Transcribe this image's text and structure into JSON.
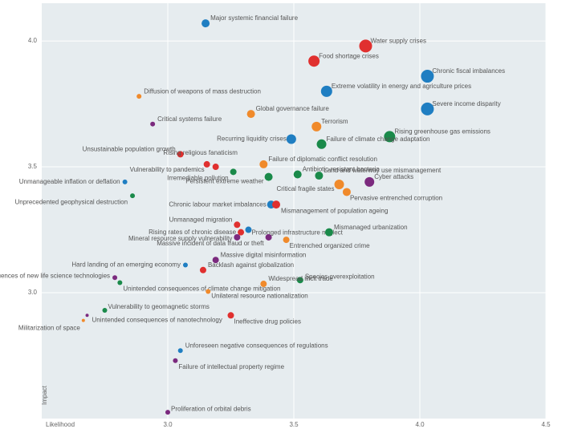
{
  "chart_data": {
    "type": "scatter",
    "x_label": "Likelihood",
    "y_label": "Impact",
    "xlim": [
      2.5,
      4.5
    ],
    "ylim": [
      2.5,
      4.15
    ],
    "xticks": [
      {
        "value": 3,
        "label": "3.0"
      },
      {
        "value": 3.5,
        "label": "3.5"
      },
      {
        "value": 4,
        "label": "4.0"
      },
      {
        "value": 4.5,
        "label": "4.5"
      }
    ],
    "yticks": [
      {
        "value": 3,
        "label": "3.0"
      },
      {
        "value": 3.5,
        "label": "3.5"
      },
      {
        "value": 4,
        "label": "4.0"
      }
    ],
    "grid": true,
    "points": [
      {
        "label": "Major systemic financial failure",
        "x": 3.15,
        "y": 4.07,
        "size": 5,
        "color": "#1f7ec2"
      },
      {
        "label": "Water supply crises",
        "x": 3.785,
        "y": 3.98,
        "size": 8,
        "color": "#e0302f"
      },
      {
        "label": "Food shortage crises",
        "x": 3.58,
        "y": 3.92,
        "size": 7,
        "color": "#e0302f"
      },
      {
        "label": "Chronic fiscal imbalances",
        "x": 4.03,
        "y": 3.86,
        "size": 8,
        "color": "#1f7ec2"
      },
      {
        "label": "Extreme volatility in energy and agriculture prices",
        "x": 3.63,
        "y": 3.8,
        "size": 7,
        "color": "#1f7ec2"
      },
      {
        "label": "Diffusion of weapons of mass destruction",
        "x": 2.886,
        "y": 3.78,
        "size": 3,
        "color": "#f08a2b"
      },
      {
        "label": "Severe income disparity",
        "x": 4.03,
        "y": 3.73,
        "size": 8,
        "color": "#1f7ec2"
      },
      {
        "label": "Global governance failure",
        "x": 3.33,
        "y": 3.71,
        "size": 5,
        "color": "#f08a2b"
      },
      {
        "label": "Critical systems failure",
        "x": 2.94,
        "y": 3.67,
        "size": 3,
        "color": "#7b2a7e"
      },
      {
        "label": "Terrorism",
        "x": 3.59,
        "y": 3.66,
        "size": 6,
        "color": "#f08a2b"
      },
      {
        "label": "Rising greenhouse gas emissions",
        "x": 3.88,
        "y": 3.62,
        "size": 7,
        "color": "#1a8a4a"
      },
      {
        "label": "Recurring liquidity crises",
        "x": 3.49,
        "y": 3.61,
        "size": 6,
        "color": "#1f7ec2"
      },
      {
        "label": "Failure of climate change adaptation",
        "x": 3.61,
        "y": 3.59,
        "size": 6,
        "color": "#1a8a4a"
      },
      {
        "label": "Unsustainable population growth",
        "x": 3.05,
        "y": 3.55,
        "size": 4,
        "color": "#e0302f"
      },
      {
        "label": "Rising religious fanaticism",
        "x": 3.155,
        "y": 3.51,
        "size": 4,
        "color": "#e0302f"
      },
      {
        "label": "Failure of diplomatic conflict resolution",
        "x": 3.38,
        "y": 3.51,
        "size": 5,
        "color": "#f08a2b"
      },
      {
        "label": "Antibiotic-resistant bacteria",
        "x": 3.515,
        "y": 3.47,
        "size": 5,
        "color": "#1a8a4a"
      },
      {
        "label": "Vulnerability to pandemics",
        "x": 3.19,
        "y": 3.5,
        "size": 4,
        "color": "#e0302f"
      },
      {
        "label": "Irremediable pollution",
        "x": 3.26,
        "y": 3.48,
        "size": 4,
        "color": "#1a8a4a"
      },
      {
        "label": "Land and waterway use mismanagement",
        "x": 3.6,
        "y": 3.465,
        "size": 5,
        "color": "#1a8a4a"
      },
      {
        "label": "Persistent extreme weather",
        "x": 3.4,
        "y": 3.46,
        "size": 5,
        "color": "#1a8a4a"
      },
      {
        "label": "Unmanageable inflation or deflation",
        "x": 2.83,
        "y": 3.44,
        "size": 3,
        "color": "#1f7ec2"
      },
      {
        "label": "Cyber attacks",
        "x": 3.8,
        "y": 3.44,
        "size": 6,
        "color": "#7b2a7e"
      },
      {
        "label": "Critical fragile states",
        "x": 3.68,
        "y": 3.43,
        "size": 6,
        "color": "#f08a2b"
      },
      {
        "label": "Pervasive entrenched corruption",
        "x": 3.71,
        "y": 3.4,
        "size": 5,
        "color": "#f08a2b"
      },
      {
        "label": "Unprecedented geophysical destruction",
        "x": 2.86,
        "y": 3.385,
        "size": 3,
        "color": "#1a8a4a"
      },
      {
        "label": "Chronic labour market imbalances",
        "x": 3.41,
        "y": 3.35,
        "size": 5,
        "color": "#1f7ec2"
      },
      {
        "label": "Mismanagement of population ageing",
        "x": 3.43,
        "y": 3.35,
        "size": 5,
        "color": "#e0302f"
      },
      {
        "label": "Unmanaged migration",
        "x": 3.275,
        "y": 3.27,
        "size": 4,
        "color": "#e0302f"
      },
      {
        "label": "Rising rates of chronic disease",
        "x": 3.29,
        "y": 3.24,
        "size": 4,
        "color": "#e0302f"
      },
      {
        "label": "Prolonged infrastructure neglect",
        "x": 3.32,
        "y": 3.25,
        "size": 4,
        "color": "#1f7ec2"
      },
      {
        "label": "Mineral resource supply vulnerability",
        "x": 3.275,
        "y": 3.22,
        "size": 4,
        "color": "#7b2a7e"
      },
      {
        "label": "Massive incident of data fraud or theft",
        "x": 3.4,
        "y": 3.22,
        "size": 4,
        "color": "#7b2a7e"
      },
      {
        "label": "Entrenched organized crime",
        "x": 3.47,
        "y": 3.21,
        "size": 4,
        "color": "#f08a2b"
      },
      {
        "label": "Mismanaged urbanization",
        "x": 3.64,
        "y": 3.24,
        "size": 5,
        "color": "#1a8a4a"
      },
      {
        "label": "Massive digital misinformation",
        "x": 3.19,
        "y": 3.13,
        "size": 4,
        "color": "#7b2a7e"
      },
      {
        "label": "Hard landing of an emerging economy",
        "x": 3.07,
        "y": 3.11,
        "size": 3,
        "color": "#1f7ec2"
      },
      {
        "label": "Backlash against globalization",
        "x": 3.14,
        "y": 3.09,
        "size": 4,
        "color": "#e0302f"
      },
      {
        "label": "Species overexploitation",
        "x": 3.525,
        "y": 3.05,
        "size": 4,
        "color": "#1a8a4a"
      },
      {
        "label": "Unintended consequences of new life science technologies",
        "x": 2.79,
        "y": 3.06,
        "size": 3,
        "color": "#7b2a7e"
      },
      {
        "label": "Unintended consequences of climate change mitigation",
        "x": 2.81,
        "y": 3.04,
        "size": 3,
        "color": "#1a8a4a"
      },
      {
        "label": "Widespread illicit trade",
        "x": 3.38,
        "y": 3.035,
        "size": 4,
        "color": "#f08a2b"
      },
      {
        "label": "Unilateral resource nationalization",
        "x": 3.16,
        "y": 3.005,
        "size": 3,
        "color": "#f08a2b"
      },
      {
        "label": "Vulnerability to geomagnetic storms",
        "x": 2.75,
        "y": 2.93,
        "size": 3,
        "color": "#1a8a4a"
      },
      {
        "label": "Militarization of space",
        "x": 2.665,
        "y": 2.89,
        "size": 2,
        "color": "#f08a2b"
      },
      {
        "label": "Unintended consequences of nanotechnology",
        "x": 2.68,
        "y": 2.91,
        "size": 2,
        "color": "#7b2a7e"
      },
      {
        "label": "Ineffective drug policies",
        "x": 3.25,
        "y": 2.91,
        "size": 4,
        "color": "#e0302f"
      },
      {
        "label": "Unforeseen negative consequences of regulations",
        "x": 3.05,
        "y": 2.77,
        "size": 3,
        "color": "#1f7ec2"
      },
      {
        "label": "Failure of intellectual property regime",
        "x": 3.03,
        "y": 2.73,
        "size": 3,
        "color": "#7b2a7e"
      },
      {
        "label": "Proliferation of orbital debris",
        "x": 3.0,
        "y": 2.525,
        "size": 3,
        "color": "#7b2a7e"
      }
    ]
  }
}
